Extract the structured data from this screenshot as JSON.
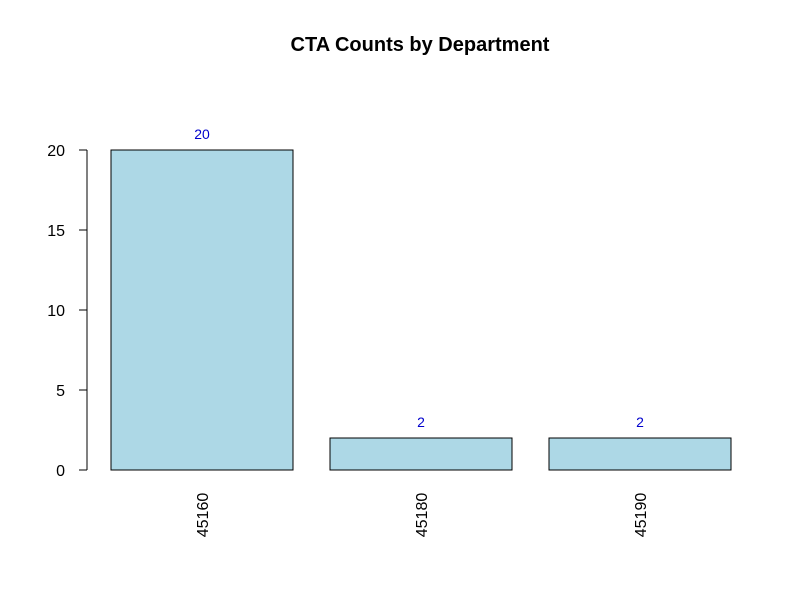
{
  "chart_data": {
    "type": "bar",
    "title": "CTA Counts by Department",
    "xlabel": "",
    "ylabel": "",
    "categories": [
      "45160",
      "45180",
      "45190"
    ],
    "values": [
      20,
      2,
      2
    ],
    "data_labels": [
      "20",
      "2",
      "2"
    ],
    "y_ticks": [
      0,
      5,
      10,
      15,
      20
    ],
    "y_tick_labels": [
      "0",
      "5",
      "10",
      "15",
      "20"
    ],
    "ylim": [
      0,
      20
    ],
    "grid": false,
    "legend": "none",
    "colors": {
      "bar_fill": "#ADD8E6",
      "bar_stroke": "#000000",
      "data_label": "#0000CC",
      "axis": "#000000"
    }
  }
}
